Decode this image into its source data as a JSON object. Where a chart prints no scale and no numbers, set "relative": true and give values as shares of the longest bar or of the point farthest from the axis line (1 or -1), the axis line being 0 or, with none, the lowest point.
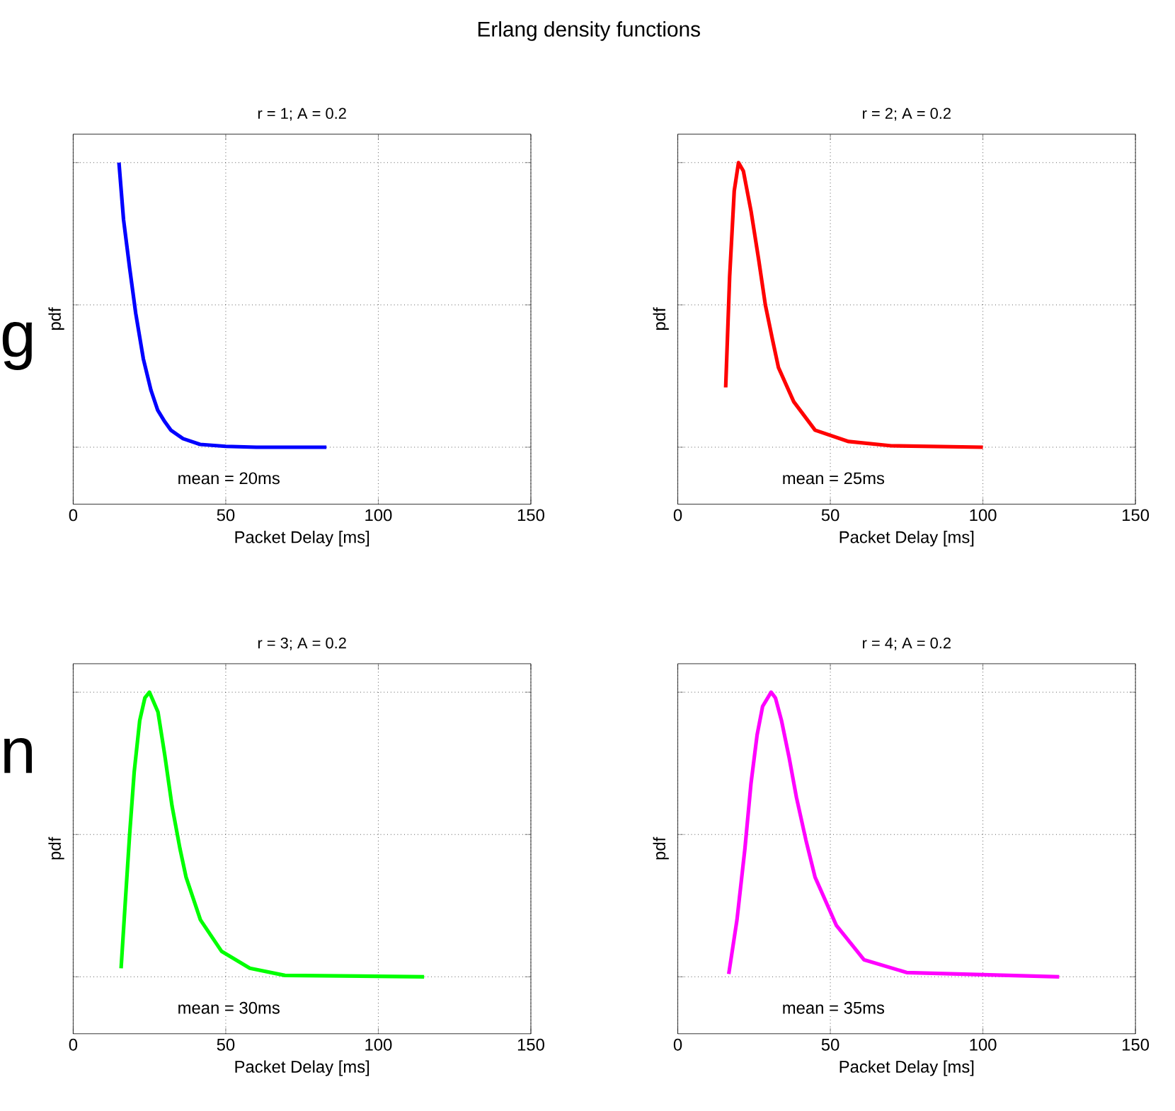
{
  "chart_data": [
    {
      "type": "other",
      "title": "Erlang density functions",
      "annotations": [
        "g",
        "n"
      ]
    },
    {
      "type": "line",
      "title": "r = 1; A = 0.2",
      "xlabel": "Packet Delay [ms]",
      "ylabel": "pdf",
      "relative": true,
      "tick_labels": "x",
      "grid": true,
      "xlim": [
        0,
        150
      ],
      "xticks": [
        0,
        50,
        100,
        150
      ],
      "annotations": [
        "mean = 20ms"
      ],
      "series": [
        {
          "color": "#0000ff",
          "x": [
            15,
            16.5,
            18.5,
            20.5,
            23,
            25.5,
            27.7,
            30,
            32,
            36,
            41.6,
            50,
            60,
            83
          ],
          "values": [
            1,
            0.8,
            0.63,
            0.47,
            0.31,
            0.2,
            0.13,
            0.09,
            0.06,
            0.03,
            0.01,
            0.003,
            0,
            0
          ]
        }
      ]
    },
    {
      "type": "line",
      "title": "r = 2; A = 0.2",
      "xlabel": "Packet Delay [ms]",
      "ylabel": "pdf",
      "relative": true,
      "tick_labels": "x",
      "grid": true,
      "xlim": [
        0,
        150
      ],
      "xticks": [
        0,
        50,
        100,
        150
      ],
      "annotations": [
        "mean = 25ms"
      ],
      "series": [
        {
          "color": "#ff0000",
          "x": [
            15.7,
            17,
            18.5,
            19.9,
            21.5,
            24,
            26.5,
            28.7,
            31,
            33,
            38,
            45,
            56,
            70,
            100
          ],
          "values": [
            0.21,
            0.6,
            0.9,
            1,
            0.97,
            0.83,
            0.66,
            0.5,
            0.38,
            0.28,
            0.16,
            0.06,
            0.02,
            0.005,
            0
          ]
        }
      ]
    },
    {
      "type": "line",
      "title": "r = 3; A = 0.2",
      "xlabel": "Packet Delay [ms]",
      "ylabel": "pdf",
      "relative": true,
      "tick_labels": "x",
      "grid": true,
      "xlim": [
        0,
        150
      ],
      "xticks": [
        0,
        50,
        100,
        150
      ],
      "annotations": [
        "mean = 30ms"
      ],
      "series": [
        {
          "color": "#00ff00",
          "x": [
            15.7,
            17,
            18.5,
            20,
            21.8,
            23.5,
            25,
            27.8,
            30,
            32.4,
            35,
            37,
            41.7,
            48.6,
            57.9,
            69.4,
            115
          ],
          "values": [
            0.03,
            0.25,
            0.5,
            0.72,
            0.9,
            0.98,
            1,
            0.93,
            0.78,
            0.6,
            0.45,
            0.35,
            0.2,
            0.09,
            0.03,
            0.005,
            0
          ]
        }
      ]
    },
    {
      "type": "line",
      "title": "r = 4; A = 0.2",
      "xlabel": "Packet Delay [ms]",
      "ylabel": "pdf",
      "relative": true,
      "tick_labels": "x",
      "grid": true,
      "xlim": [
        0,
        150
      ],
      "xticks": [
        0,
        50,
        100,
        150
      ],
      "annotations": [
        "mean = 35ms"
      ],
      "series": [
        {
          "color": "#ff00ff",
          "x": [
            16.7,
            19.4,
            22,
            24,
            26,
            27.8,
            30.6,
            32,
            34,
            36.5,
            38.9,
            42,
            45,
            52,
            61,
            75,
            125
          ],
          "values": [
            0.01,
            0.2,
            0.45,
            0.68,
            0.85,
            0.95,
            1,
            0.98,
            0.9,
            0.77,
            0.63,
            0.48,
            0.35,
            0.18,
            0.06,
            0.015,
            0
          ]
        }
      ]
    }
  ]
}
